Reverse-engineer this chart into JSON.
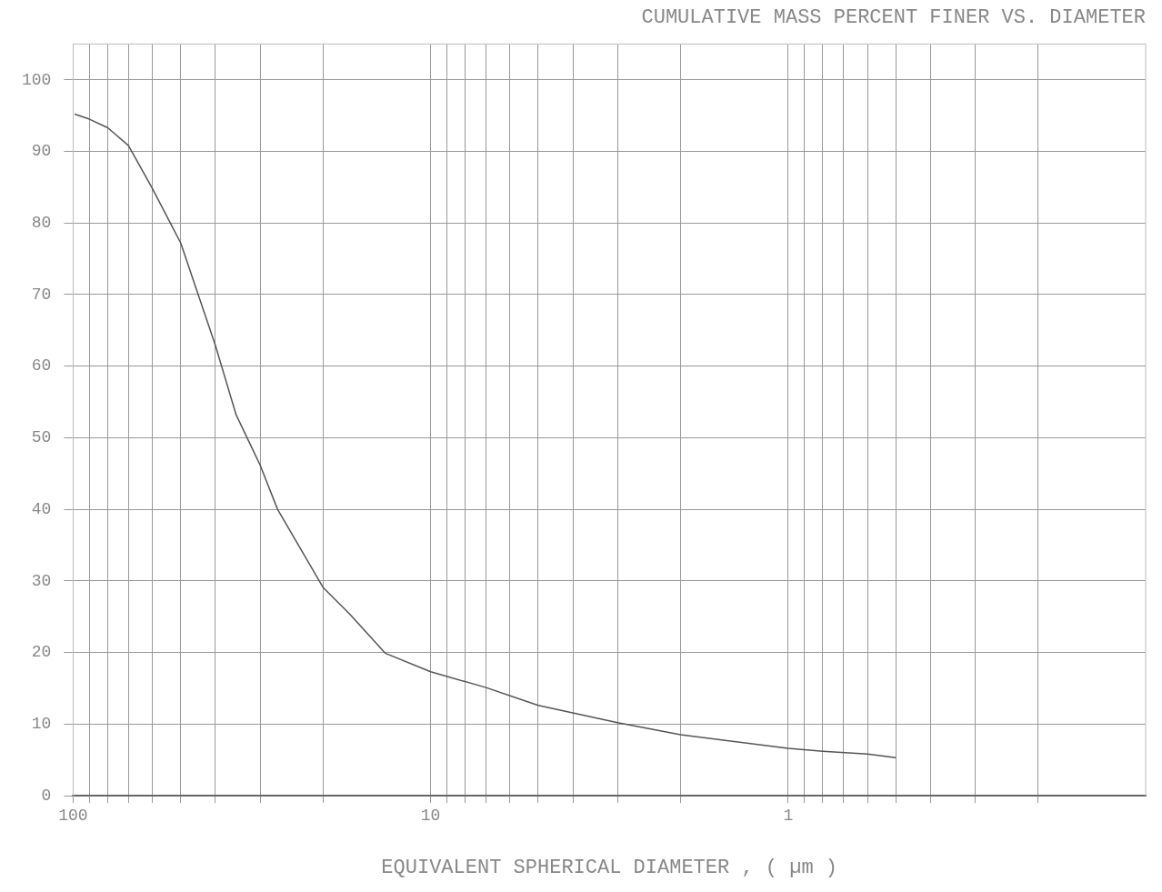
{
  "chart_data": {
    "type": "line",
    "title": "CUMULATIVE MASS PERCENT FINER VS. DIAMETER",
    "xlabel": "EQUIVALENT SPHERICAL DIAMETER , ( µm )",
    "x": [
      99,
      90,
      80,
      70,
      60,
      50,
      40,
      35,
      30,
      26.8,
      20,
      16.8,
      13.4,
      10,
      7,
      5,
      3,
      2,
      1,
      0.8,
      0.6,
      0.5
    ],
    "series": [
      {
        "color": "#555555",
        "values": [
          95.2,
          94.5,
          93.3,
          90.8,
          84.8,
          77.2,
          62.9,
          53.2,
          46.2,
          40,
          29.1,
          25.3,
          19.9,
          17.3,
          15.1,
          12.6,
          10.2,
          8.5,
          6.6,
          6.2,
          5.8,
          5.3
        ]
      }
    ],
    "log": "x",
    "xlim": [
      100,
      0.1
    ],
    "xticks": [
      {
        "value": 100,
        "label": "100"
      },
      {
        "value": 90,
        "label": null
      },
      {
        "value": 80,
        "label": null
      },
      {
        "value": 70,
        "label": null
      },
      {
        "value": 60,
        "label": null
      },
      {
        "value": 50,
        "label": null
      },
      {
        "value": 40,
        "label": null
      },
      {
        "value": 30,
        "label": null
      },
      {
        "value": 20,
        "label": null
      },
      {
        "value": 10,
        "label": "10"
      },
      {
        "value": 9,
        "label": null
      },
      {
        "value": 8,
        "label": null
      },
      {
        "value": 7,
        "label": null
      },
      {
        "value": 6,
        "label": null
      },
      {
        "value": 5,
        "label": null
      },
      {
        "value": 4,
        "label": null
      },
      {
        "value": 3,
        "label": null
      },
      {
        "value": 2,
        "label": null
      },
      {
        "value": 1,
        "label": "1"
      },
      {
        "value": 0.9,
        "label": null
      },
      {
        "value": 0.8,
        "label": null
      },
      {
        "value": 0.7,
        "label": null
      },
      {
        "value": 0.6,
        "label": null
      },
      {
        "value": 0.5,
        "label": null
      },
      {
        "value": 0.4,
        "label": null
      },
      {
        "value": 0.3,
        "label": null
      },
      {
        "value": 0.2,
        "label": null
      }
    ],
    "ylim": [
      0,
      105
    ],
    "yticks": [
      0,
      10,
      20,
      30,
      40,
      50,
      60,
      70,
      80,
      90,
      100
    ],
    "grid": true,
    "marker": "none",
    "line_style": "solid",
    "legend": false
  }
}
